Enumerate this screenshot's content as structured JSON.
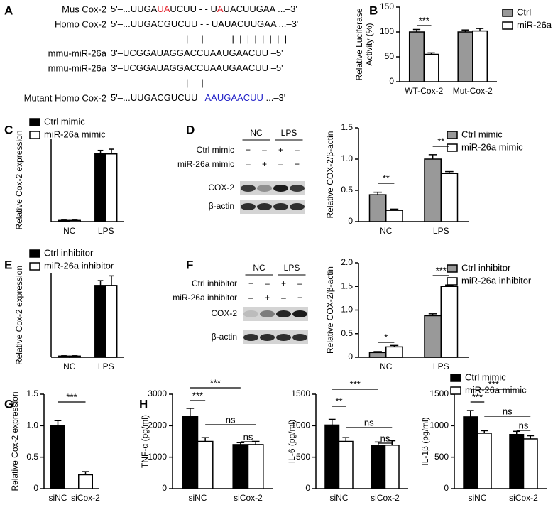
{
  "panel_labels": [
    "A",
    "B",
    "C",
    "D",
    "E",
    "F",
    "G",
    "H"
  ],
  "sequence_alignment": {
    "rows": [
      {
        "label": "Mus Cox-2",
        "segments": [
          {
            "text": "5'–...UUGA"
          },
          {
            "text": "UA",
            "color": "#e3202a"
          },
          {
            "text": "UCUU - - U"
          },
          {
            "text": "A",
            "color": "#e3202a"
          },
          {
            "text": "UACUUGAA ...–3'"
          }
        ]
      },
      {
        "label": "Homo Cox-2",
        "segments": [
          {
            "text": "5'–...UUGACGUCUU - - UAUACUUGAA ...–3'"
          }
        ]
      },
      {
        "segments": [
          {
            "text": "|     |           |  |  |  |  |  |  |  |"
          }
        ]
      },
      {
        "label": "mmu-miR-26a",
        "segments": [
          {
            "text": "3'–UCGGAUAGGACCUAAUGAACUU –5'"
          }
        ]
      },
      {
        "label": "mmu-miR-26a",
        "segments": [
          {
            "text": "3'–UCGGAUAGGACCUAAUGAACUU –5'"
          }
        ]
      },
      {
        "segments": [
          {
            "text": "|     |"
          }
        ]
      },
      {
        "label": "Mutant Homo Cox-2",
        "segments": [
          {
            "text": "5'–...UUGACGUCUU   "
          },
          {
            "text": "AAUGAACUU",
            "color": "#2424c8"
          },
          {
            "text": " ...–3'"
          }
        ]
      }
    ]
  },
  "blots": [
    {
      "headers": [
        "NC",
        "LPS"
      ],
      "rows": [
        {
          "label": "Ctrl mimic",
          "signs": [
            "+",
            "–",
            "+",
            "–"
          ]
        },
        {
          "label": "miR-26a mimic",
          "signs": [
            "–",
            "+",
            "–",
            "+"
          ]
        }
      ],
      "bands": [
        "COX-2",
        "β-actin"
      ]
    },
    {
      "headers": [
        "NC",
        "LPS"
      ],
      "rows": [
        {
          "label": "Ctrl inhibitor",
          "signs": [
            "+",
            "–",
            "+",
            "–"
          ]
        },
        {
          "label": "miR-26a inhibitor",
          "signs": [
            "–",
            "+",
            "–",
            "+"
          ]
        }
      ],
      "bands": [
        "COX-2",
        "β-actin"
      ]
    }
  ],
  "chart_data": [
    {
      "type": "bar",
      "ylabel": [
        "Relative Luciferase",
        "Activity (%)"
      ],
      "categories": [
        "WT-Cox-2",
        "Mut-Cox-2"
      ],
      "series": [
        {
          "name": "Ctrl",
          "color": "#999999",
          "values": [
            100,
            100
          ],
          "errors": [
            5,
            4
          ]
        },
        {
          "name": "miR-26a",
          "color": "#ffffff",
          "values": [
            55,
            102
          ],
          "errors": [
            3,
            5
          ]
        }
      ],
      "ylim": [
        0,
        150
      ],
      "yticks": [
        0,
        50,
        100,
        150
      ],
      "annotations": [
        "***"
      ]
    },
    {
      "type": "bar",
      "ylabel": "Relative Cox-2 expression",
      "categories": [
        "NC",
        "LPS"
      ],
      "series": [
        {
          "name": "Ctrl mimic",
          "color": "#000000",
          "values": [
            1,
            57
          ],
          "errors": [
            0.3,
            3
          ]
        },
        {
          "name": "miR-26a mimic",
          "color": "#ffffff",
          "values": [
            1,
            57
          ],
          "errors": [
            0.3,
            4
          ]
        }
      ],
      "ylim": [
        0,
        70
      ],
      "annotations": []
    },
    {
      "type": "bar",
      "ylabel": "Relative COX-2/β-actin",
      "categories": [
        "NC",
        "LPS"
      ],
      "series": [
        {
          "name": "Ctrl mimic",
          "color": "#999999",
          "values": [
            0.43,
            1.0
          ],
          "errors": [
            0.04,
            0.07
          ]
        },
        {
          "name": "miR-26a mimic",
          "color": "#ffffff",
          "values": [
            0.18,
            0.77
          ],
          "errors": [
            0.02,
            0.03
          ]
        }
      ],
      "ylim": [
        0,
        1.5
      ],
      "yticks": [
        0,
        0.5,
        {
          "value": 1,
          "label": "1.0"
        },
        1.5
      ],
      "annotations": [
        "**",
        "**"
      ]
    },
    {
      "type": "bar",
      "ylabel": "Relative Cox-2 expression",
      "categories": [
        "NC",
        "LPS"
      ],
      "series": [
        {
          "name": "Ctrl inhibitor",
          "color": "#000000",
          "values": [
            1,
            60
          ],
          "errors": [
            0.3,
            4
          ]
        },
        {
          "name": "miR-26a inhibitor",
          "color": "#ffffff",
          "values": [
            1,
            60
          ],
          "errors": [
            0.3,
            8
          ]
        }
      ],
      "ylim": [
        0,
        70
      ],
      "annotations": []
    },
    {
      "type": "bar",
      "ylabel": "Relative COX-2/β-actin",
      "categories": [
        "NC",
        "LPS"
      ],
      "series": [
        {
          "name": "Ctrl inhibitor",
          "color": "#999999",
          "values": [
            0.1,
            0.88
          ],
          "errors": [
            0.02,
            0.04
          ]
        },
        {
          "name": "miR-26a inhibitor",
          "color": "#ffffff",
          "values": [
            0.22,
            1.5
          ],
          "errors": [
            0.03,
            0.03
          ]
        }
      ],
      "ylim": [
        0,
        2.0
      ],
      "yticks": [
        0,
        0.5,
        {
          "value": 1,
          "label": "1.0"
        },
        1.5,
        {
          "value": 2,
          "label": "2.0"
        }
      ],
      "annotations": [
        "*",
        "***"
      ]
    },
    {
      "type": "bar",
      "ylabel": "Relative Cox-2 expression",
      "categories": [
        "siNC",
        "siCox-2"
      ],
      "series": [
        {
          "colors": [
            "#000000",
            "#ffffff"
          ],
          "values": [
            1.0,
            0.22
          ],
          "errors": [
            0.08,
            0.05
          ]
        }
      ],
      "ylim": [
        0,
        1.5
      ],
      "yticks": [
        0,
        0.5,
        {
          "value": 1,
          "label": "1.0"
        },
        1.5
      ],
      "annotations": [
        "***"
      ]
    },
    {
      "type": "bar",
      "ylabel": "TNF-α (pg/ml)",
      "categories": [
        "siNC",
        "siCox-2"
      ],
      "series": [
        {
          "color": "#000000",
          "values": [
            2300,
            1400
          ],
          "errors": [
            250,
            60
          ]
        },
        {
          "color": "#ffffff",
          "values": [
            1500,
            1400
          ],
          "errors": [
            120,
            100
          ]
        }
      ],
      "ylim": [
        0,
        3000
      ],
      "yticks": [
        0,
        1000,
        2000,
        3000
      ],
      "annotations": [
        "***",
        "***",
        "ns",
        "ns"
      ]
    },
    {
      "type": "bar",
      "ylabel": "IL-6 (pg/ml)",
      "categories": [
        "siNC",
        "siCox-2"
      ],
      "series": [
        {
          "color": "#000000",
          "values": [
            1010,
            690
          ],
          "errors": [
            90,
            50
          ]
        },
        {
          "color": "#ffffff",
          "values": [
            750,
            690
          ],
          "errors": [
            60,
            70
          ]
        }
      ],
      "ylim": [
        0,
        1500
      ],
      "yticks": [
        0,
        500,
        1000,
        1500
      ],
      "annotations": [
        "***",
        "**",
        "ns",
        "ns"
      ]
    },
    {
      "type": "bar",
      "ylabel": "IL-1β (pg/ml)",
      "categories": [
        "siNC",
        "siCox-2"
      ],
      "series": [
        {
          "name": "Ctrl mimic",
          "color": "#000000",
          "values": [
            1140,
            860
          ],
          "errors": [
            100,
            50
          ]
        },
        {
          "name": "miR-26a mimic",
          "color": "#ffffff",
          "values": [
            880,
            790
          ],
          "errors": [
            40,
            50
          ]
        }
      ],
      "ylim": [
        0,
        1500
      ],
      "yticks": [
        0,
        500,
        1000,
        1500
      ],
      "annotations": [
        "***",
        "***",
        "ns",
        "ns"
      ]
    }
  ]
}
